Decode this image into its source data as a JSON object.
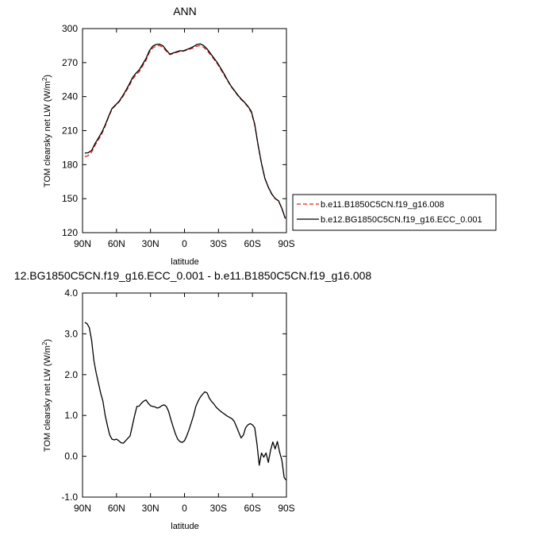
{
  "chart_data": [
    {
      "type": "line",
      "title": "ANN",
      "xlabel": "latitude",
      "ylabel_main": "TOM clearsky net LW (W/m",
      "ylabel_sup": "2",
      "ylabel_end": ")",
      "xlim": [
        90,
        -90
      ],
      "ylim": [
        120,
        300
      ],
      "xticks": [
        90,
        60,
        30,
        0,
        -30,
        -60,
        -90
      ],
      "xtick_labels": [
        "90N",
        "60N",
        "30N",
        "0",
        "30S",
        "60S",
        "90S"
      ],
      "yticks": [
        120,
        150,
        180,
        210,
        240,
        270,
        300
      ],
      "ytick_labels": [
        "120",
        "150",
        "180",
        "210",
        "240",
        "270",
        "300"
      ],
      "legend_position": "outside-right",
      "series": [
        {
          "name": "b.e11.B1850C5CN.f19_g16.008",
          "color": "#e0201b",
          "dash": "dashed",
          "x": [
            88,
            85,
            82,
            79,
            76,
            73,
            70,
            67,
            64,
            61,
            58,
            55,
            52,
            49,
            46,
            43,
            40,
            37,
            34,
            31,
            28,
            25,
            22,
            19,
            16,
            13,
            10,
            7,
            4,
            1,
            -2,
            -5,
            -8,
            -11,
            -14,
            -17,
            -20,
            -23,
            -26,
            -29,
            -32,
            -35,
            -38,
            -41,
            -44,
            -47,
            -50,
            -53,
            -56,
            -59,
            -62,
            -65,
            -68,
            -71,
            -74,
            -77,
            -80,
            -83,
            -86,
            -89
          ],
          "y": [
            187,
            188,
            191,
            197,
            202,
            207,
            214,
            222,
            229,
            232,
            235,
            239,
            244,
            249,
            255,
            259,
            262,
            267,
            272,
            279,
            283,
            284.5,
            285,
            283.5,
            280,
            277,
            278,
            279,
            280,
            280,
            281,
            282,
            283,
            284.5,
            285,
            283.5,
            280.5,
            277,
            273,
            269,
            264,
            259,
            254,
            249,
            245,
            241,
            237.5,
            234.5,
            231,
            226,
            215,
            197,
            181,
            168,
            160,
            154,
            150,
            148,
            141,
            133
          ]
        },
        {
          "name": "b.e12.BG1850C5CN.f19_g16.ECC_0.001",
          "color": "#000000",
          "dash": "solid",
          "x": [
            88,
            85,
            82,
            79,
            76,
            73,
            70,
            67,
            64,
            61,
            58,
            55,
            52,
            49,
            46,
            43,
            40,
            37,
            34,
            31,
            28,
            25,
            22,
            19,
            16,
            13,
            10,
            7,
            4,
            1,
            -2,
            -5,
            -8,
            -11,
            -14,
            -17,
            -20,
            -23,
            -26,
            -29,
            -32,
            -35,
            -38,
            -41,
            -44,
            -47,
            -50,
            -53,
            -56,
            -59,
            -62,
            -65,
            -68,
            -71,
            -74,
            -77,
            -80,
            -83,
            -86,
            -89
          ],
          "y": [
            190.2,
            190.5,
            192.5,
            198.5,
            203.5,
            208.5,
            215,
            222.5,
            229.5,
            232.5,
            235.5,
            240,
            245,
            250.5,
            256.5,
            260.5,
            263.5,
            268.5,
            273.5,
            280.5,
            284.5,
            286,
            286.3,
            284.8,
            281,
            277.5,
            278.5,
            279.5,
            280.5,
            280.4,
            281.5,
            282.7,
            284.2,
            286,
            286.5,
            285,
            282,
            278,
            274,
            270,
            265,
            260,
            254.5,
            249.5,
            245.5,
            241.5,
            238,
            235,
            231.5,
            227,
            215.7,
            197.1,
            181,
            167.8,
            160.2,
            154.2,
            150.2,
            148.2,
            141.4,
            132.4
          ]
        }
      ]
    },
    {
      "type": "line",
      "title": "12.BG1850C5CN.f19_g16.ECC_0.001 - b.e11.B1850C5CN.f19_g16.008",
      "xlabel": "latitude",
      "ylabel_main": "TOM clearsky net LW (W/m",
      "ylabel_sup": "2",
      "ylabel_end": ")",
      "xlim": [
        90,
        -90
      ],
      "ylim": [
        -1.0,
        4.0
      ],
      "xticks": [
        90,
        60,
        30,
        0,
        -30,
        -60,
        -90
      ],
      "xtick_labels": [
        "90N",
        "60N",
        "30N",
        "0",
        "30S",
        "60S",
        "90S"
      ],
      "yticks": [
        -1.0,
        0.0,
        1.0,
        2.0,
        3.0,
        4.0
      ],
      "ytick_labels": [
        "-1.0",
        "0.0",
        "1.0",
        "2.0",
        "3.0",
        "4.0"
      ],
      "series": [
        {
          "color": "#000000",
          "dash": "solid",
          "x": [
            88,
            86,
            84,
            82,
            80,
            78,
            76,
            74,
            72,
            70,
            68,
            66,
            64,
            62,
            60,
            58,
            56,
            54,
            52,
            50,
            48,
            46,
            44,
            42,
            40,
            38,
            36,
            34,
            32,
            30,
            28,
            26,
            24,
            22,
            20,
            18,
            16,
            14,
            12,
            10,
            8,
            6,
            4,
            2,
            0,
            -2,
            -4,
            -6,
            -8,
            -10,
            -12,
            -14,
            -16,
            -18,
            -20,
            -22,
            -24,
            -26,
            -28,
            -30,
            -32,
            -34,
            -36,
            -38,
            -40,
            -42,
            -44,
            -46,
            -48,
            -50,
            -52,
            -54,
            -56,
            -58,
            -60,
            -62,
            -64,
            -66,
            -68,
            -70,
            -72,
            -74,
            -76,
            -78,
            -80,
            -82,
            -84,
            -86,
            -88,
            -89.5
          ],
          "y": [
            3.28,
            3.25,
            3.15,
            2.85,
            2.35,
            2.05,
            1.8,
            1.55,
            1.35,
            1.0,
            0.75,
            0.52,
            0.42,
            0.4,
            0.42,
            0.38,
            0.33,
            0.32,
            0.38,
            0.44,
            0.5,
            0.75,
            1.0,
            1.22,
            1.23,
            1.3,
            1.35,
            1.38,
            1.3,
            1.24,
            1.22,
            1.21,
            1.18,
            1.2,
            1.24,
            1.26,
            1.22,
            1.1,
            0.9,
            0.72,
            0.55,
            0.42,
            0.36,
            0.34,
            0.38,
            0.5,
            0.65,
            0.82,
            1.0,
            1.22,
            1.35,
            1.45,
            1.52,
            1.58,
            1.55,
            1.42,
            1.34,
            1.28,
            1.2,
            1.15,
            1.1,
            1.06,
            1.02,
            0.98,
            0.95,
            0.92,
            0.85,
            0.72,
            0.58,
            0.45,
            0.52,
            0.7,
            0.77,
            0.8,
            0.77,
            0.7,
            0.3,
            -0.22,
            0.08,
            -0.02,
            0.08,
            -0.15,
            0.15,
            0.35,
            0.18,
            0.36,
            0.1,
            -0.1,
            -0.52,
            -0.58
          ]
        }
      ]
    }
  ]
}
